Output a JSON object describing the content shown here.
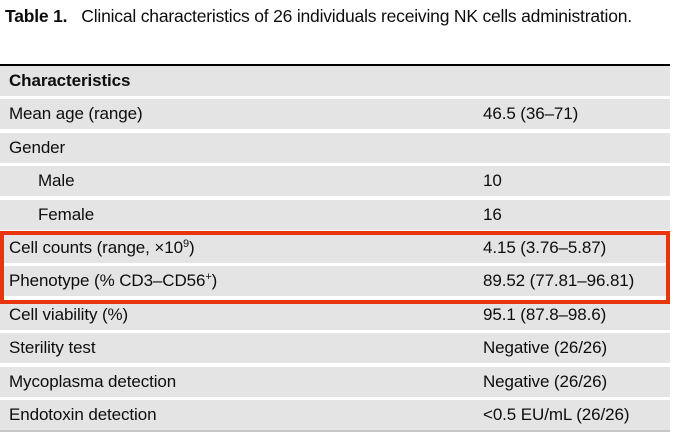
{
  "caption": {
    "label": "Table 1.",
    "text": "Clinical characteristics of 26 individuals receiving NK cells administration."
  },
  "table": {
    "header": "Characteristics",
    "rows": [
      {
        "label": {
          "pre": "Mean age (range)",
          "sup": "",
          "post": ""
        },
        "value": "46.5 (36–71)"
      },
      {
        "label": {
          "pre": "Gender",
          "sup": "",
          "post": ""
        },
        "value": ""
      },
      {
        "label": {
          "pre": "Male",
          "sup": "",
          "post": ""
        },
        "value": "10"
      },
      {
        "label": {
          "pre": "Female",
          "sup": "",
          "post": ""
        },
        "value": "16"
      },
      {
        "label": {
          "pre": "Cell counts (range, ×10",
          "sup": "9",
          "post": ")"
        },
        "value": "4.15 (3.76–5.87)"
      },
      {
        "label": {
          "pre": "Phenotype (% CD3–CD56",
          "sup": "+",
          "post": ")"
        },
        "value": "89.52 (77.81–96.81)"
      },
      {
        "label": {
          "pre": "Cell viability (%)",
          "sup": "",
          "post": ""
        },
        "value": "95.1 (87.8–98.6)"
      },
      {
        "label": {
          "pre": "Sterility test",
          "sup": "",
          "post": ""
        },
        "value": "Negative (26/26)"
      },
      {
        "label": {
          "pre": "Mycoplasma detection",
          "sup": "",
          "post": ""
        },
        "value": "Negative (26/26)"
      },
      {
        "label": {
          "pre": "Endotoxin detection",
          "sup": "",
          "post": ""
        },
        "value": "<0.5 EU/mL (26/26)"
      }
    ]
  },
  "annotation": {
    "box_color": "#e8350e",
    "rows_highlighted": [
      "Cell counts (range, ×10⁹)",
      "Phenotype (% CD3–CD56⁺)"
    ]
  },
  "colors": {
    "row_background": "#e4e4e4",
    "table_top_border": "#000000",
    "table_bottom_border": "#c6c6c6",
    "text": "#0d0d0d"
  }
}
